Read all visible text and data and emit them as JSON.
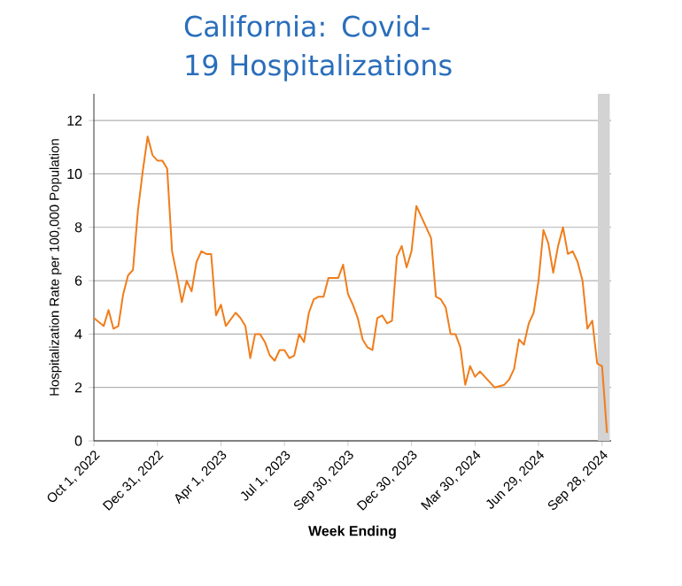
{
  "chart_data": {
    "type": "line",
    "title": "California: Covid-19 Hospitalizations",
    "xlabel": "Week Ending",
    "ylabel": "Hospitalization Rate per 100,000 Population",
    "x": [
      "2022-10-01",
      "2022-10-15",
      "2022-10-22",
      "2022-10-29",
      "2022-11-05",
      "2022-11-12",
      "2022-11-19",
      "2022-11-26",
      "2022-12-03",
      "2022-12-10",
      "2022-12-17",
      "2022-12-24",
      "2022-12-31",
      "2023-01-07",
      "2023-01-14",
      "2023-01-21",
      "2023-01-28",
      "2023-02-04",
      "2023-02-11",
      "2023-02-18",
      "2023-02-25",
      "2023-03-04",
      "2023-03-11",
      "2023-03-18",
      "2023-03-25",
      "2023-04-01",
      "2023-04-08",
      "2023-04-22",
      "2023-04-29",
      "2023-05-06",
      "2023-05-13",
      "2023-05-20",
      "2023-05-27",
      "2023-06-03",
      "2023-06-10",
      "2023-06-17",
      "2023-06-24",
      "2023-07-01",
      "2023-07-08",
      "2023-07-15",
      "2023-07-22",
      "2023-07-29",
      "2023-08-05",
      "2023-08-12",
      "2023-08-19",
      "2023-08-26",
      "2023-09-02",
      "2023-09-09",
      "2023-09-16",
      "2023-09-23",
      "2023-09-30",
      "2023-10-07",
      "2023-10-14",
      "2023-10-21",
      "2023-10-28",
      "2023-11-04",
      "2023-11-11",
      "2023-11-18",
      "2023-11-25",
      "2023-12-02",
      "2023-12-09",
      "2023-12-16",
      "2023-12-23",
      "2023-12-30",
      "2024-01-06",
      "2024-01-13",
      "2024-01-27",
      "2024-02-03",
      "2024-02-10",
      "2024-02-17",
      "2024-02-24",
      "2024-03-02",
      "2024-03-09",
      "2024-03-16",
      "2024-03-23",
      "2024-03-30",
      "2024-04-06",
      "2024-04-13",
      "2024-04-27",
      "2024-05-11",
      "2024-05-18",
      "2024-05-25",
      "2024-06-01",
      "2024-06-08",
      "2024-06-15",
      "2024-06-22",
      "2024-06-29",
      "2024-07-06",
      "2024-07-13",
      "2024-07-20",
      "2024-07-27",
      "2024-08-03",
      "2024-08-10",
      "2024-08-17",
      "2024-08-24",
      "2024-08-31",
      "2024-09-07",
      "2024-09-14",
      "2024-09-21",
      "2024-09-28",
      "2024-10-05"
    ],
    "series": [
      {
        "color": "#f07d1b",
        "values": [
          4.6,
          4.3,
          4.9,
          4.2,
          4.3,
          5.5,
          6.2,
          6.4,
          8.6,
          10.1,
          11.4,
          10.7,
          10.5,
          10.5,
          10.2,
          7.1,
          6.2,
          5.2,
          6.0,
          5.6,
          6.7,
          7.1,
          7.0,
          7.0,
          4.7,
          5.1,
          4.3,
          4.8,
          4.6,
          4.3,
          3.1,
          4.0,
          4.0,
          3.7,
          3.2,
          3.0,
          3.4,
          3.4,
          3.1,
          3.2,
          4.0,
          3.7,
          4.8,
          5.3,
          5.4,
          5.4,
          6.1,
          6.1,
          6.1,
          6.6,
          5.5,
          5.1,
          4.6,
          3.8,
          3.5,
          3.4,
          4.6,
          4.7,
          4.4,
          4.5,
          6.9,
          7.3,
          6.5,
          7.1,
          8.8,
          8.4,
          7.6,
          5.4,
          5.3,
          5.0,
          4.0,
          4.0,
          3.5,
          2.1,
          2.8,
          2.4,
          2.6,
          2.4,
          2.0,
          2.1,
          2.3,
          2.7,
          3.8,
          3.6,
          4.4,
          4.8,
          6.0,
          7.9,
          7.4,
          6.3,
          7.3,
          8.0,
          7.0,
          7.1,
          6.7,
          6.0,
          4.2,
          4.5,
          2.9,
          2.8,
          0.3
        ]
      }
    ],
    "xlim": [
      "2022-10-01",
      "2024-10-11"
    ],
    "xticks": [
      {
        "value": "2022-10-01",
        "label": "Oct 1, 2022"
      },
      {
        "value": "2022-12-31",
        "label": "Dec 31, 2022"
      },
      {
        "value": "2023-04-01",
        "label": "Apr 1, 2023"
      },
      {
        "value": "2023-07-01",
        "label": "Jul 1, 2023"
      },
      {
        "value": "2023-09-30",
        "label": "Sep 30, 2023"
      },
      {
        "value": "2023-12-30",
        "label": "Dec 30, 2023"
      },
      {
        "value": "2024-03-30",
        "label": "Mar 30, 2024"
      },
      {
        "value": "2024-06-29",
        "label": "Jun 29, 2024"
      },
      {
        "value": "2024-09-28",
        "label": "Sep 28, 2024"
      }
    ],
    "ylim": [
      0,
      13
    ],
    "yticks": [
      0,
      2,
      4,
      6,
      8,
      10,
      12
    ],
    "grid": "y",
    "marker": "none",
    "line_style": "solid",
    "bands": [
      {
        "axis": "x",
        "from": "2024-09-22",
        "to": "2024-10-09",
        "color": "#d3d3d3"
      }
    ]
  }
}
